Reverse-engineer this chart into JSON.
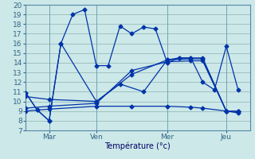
{
  "xlabel": "Température (°c)",
  "bg_color": "#cce8e8",
  "line_color": "#0033aa",
  "grid_color": "#99bbbb",
  "ylim": [
    7,
    20
  ],
  "xlim": [
    0,
    19
  ],
  "yticks": [
    7,
    8,
    9,
    10,
    11,
    12,
    13,
    14,
    15,
    16,
    17,
    18,
    19,
    20
  ],
  "xtick_labels": [
    "Mar",
    "Ven",
    "Mer",
    "Jeu"
  ],
  "xtick_positions": [
    2,
    6,
    12,
    17
  ],
  "line1_x": [
    0,
    1,
    2,
    3,
    4,
    5,
    6,
    7,
    8,
    9,
    10,
    11,
    12,
    13,
    14,
    15,
    16,
    17,
    18
  ],
  "line1_y": [
    10.9,
    9.1,
    8.0,
    16.0,
    19.0,
    19.5,
    13.7,
    13.7,
    17.8,
    17.0,
    17.7,
    17.5,
    14.0,
    14.5,
    14.5,
    12.0,
    11.2,
    15.7,
    11.2
  ],
  "line2_x": [
    0,
    1,
    2,
    3,
    6,
    8,
    10,
    12,
    13,
    14,
    15,
    17,
    18
  ],
  "line2_y": [
    10.9,
    9.1,
    8.0,
    16.0,
    10.0,
    11.8,
    11.0,
    14.3,
    14.5,
    14.5,
    14.5,
    9.0,
    8.8
  ],
  "line3_x": [
    0,
    2,
    6,
    9,
    12,
    14,
    15,
    17,
    18
  ],
  "line3_y": [
    10.5,
    10.2,
    10.0,
    12.8,
    14.3,
    14.4,
    14.4,
    9.0,
    9.0
  ],
  "line4_x": [
    0,
    2,
    6,
    9,
    12,
    14,
    15,
    17,
    18
  ],
  "line4_y": [
    9.3,
    9.5,
    9.8,
    13.2,
    14.1,
    14.2,
    14.2,
    9.0,
    9.0
  ],
  "line5_x": [
    0,
    2,
    6,
    9,
    12,
    14,
    15,
    17,
    18
  ],
  "line5_y": [
    9.0,
    9.2,
    9.5,
    9.5,
    9.5,
    9.4,
    9.3,
    9.0,
    9.0
  ],
  "marker_size": 2.5,
  "linewidth": 0.9
}
